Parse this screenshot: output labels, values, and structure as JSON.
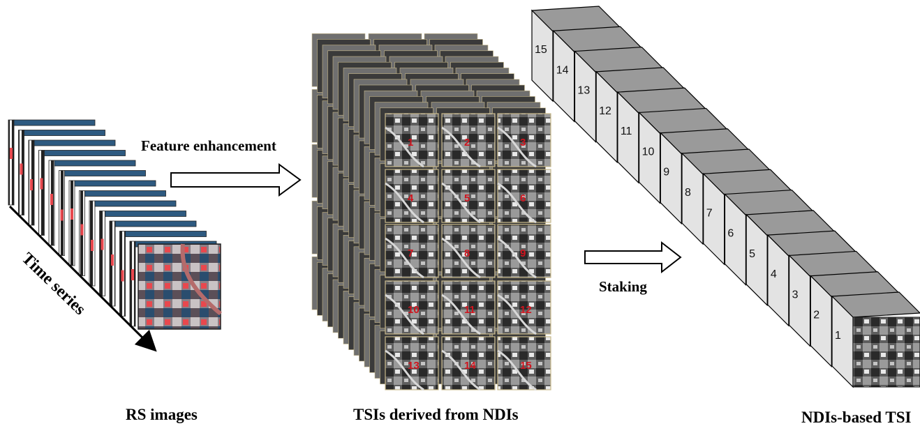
{
  "labels": {
    "feature_enhancement": "Feature enhancement",
    "time_series": "Time series",
    "staking": "Staking",
    "rs_images": "RS images",
    "tsis_derived": "TSIs derived from NDIs",
    "ndis_based": "NDIs-based TSI"
  },
  "grid_numbers": [
    "1",
    "2",
    "3",
    "4",
    "5",
    "6",
    "7",
    "8",
    "9",
    "10",
    "11",
    "12",
    "13",
    "14",
    "15"
  ],
  "stack_numbers": [
    "15",
    "14",
    "13",
    "12",
    "11",
    "10",
    "9",
    "8",
    "7",
    "6",
    "5",
    "4",
    "3",
    "2",
    "1"
  ],
  "colors": {
    "tile_number": "#d0141e",
    "cube_top": "#9a9a9a",
    "cube_face": "#e3e3e3",
    "frame_edge": "#c8b98a"
  }
}
